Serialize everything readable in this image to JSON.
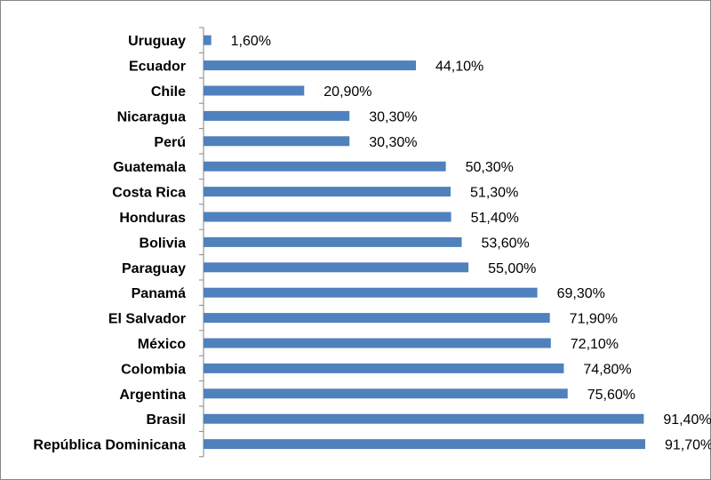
{
  "chart_data": {
    "type": "bar",
    "orientation": "horizontal",
    "categories": [
      "Uruguay",
      "Ecuador",
      "Chile",
      "Nicaragua",
      "Perú",
      "Guatemala",
      "Costa Rica",
      "Honduras",
      "Bolivia",
      "Paraguay",
      "Panamá",
      "El Salvador",
      "México",
      "Colombia",
      "Argentina",
      "Brasil",
      "República Dominicana"
    ],
    "values": [
      1.6,
      44.1,
      20.9,
      30.3,
      30.3,
      50.3,
      51.3,
      51.4,
      53.6,
      55.0,
      69.3,
      71.9,
      72.1,
      74.8,
      75.6,
      91.4,
      91.7
    ],
    "value_labels": [
      "1,60%",
      "44,10%",
      "20,90%",
      "30,30%",
      "30,30%",
      "50,30%",
      "51,30%",
      "51,40%",
      "53,60%",
      "55,00%",
      "69,30%",
      "71,90%",
      "72,10%",
      "74,80%",
      "75,60%",
      "91,40%",
      "91,70%"
    ],
    "title": "",
    "xlabel": "",
    "ylabel": "",
    "xlim": [
      0,
      91.7
    ],
    "grid": false,
    "legend": "none",
    "bar_color": "#4f81bd",
    "axis_color": "#868686"
  }
}
